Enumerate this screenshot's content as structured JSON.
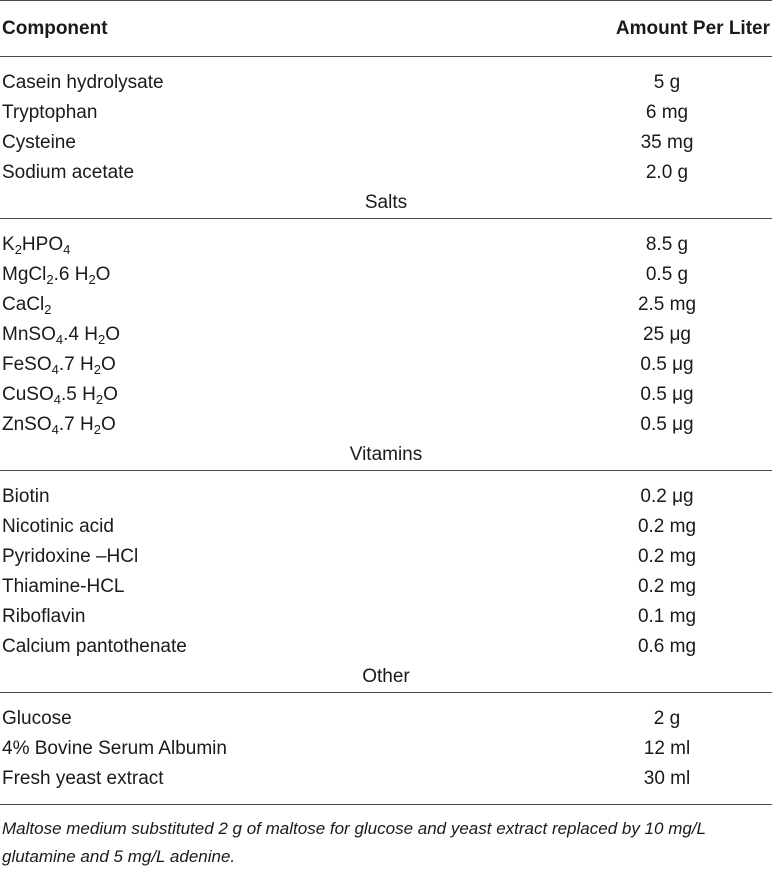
{
  "header": {
    "component": "Component",
    "amount": "Amount Per Liter"
  },
  "sections": [
    {
      "title": "",
      "rows": [
        {
          "name": "Casein hydrolysate",
          "amount": "5 g"
        },
        {
          "name": "Tryptophan",
          "amount": "6 mg"
        },
        {
          "name": "Cysteine",
          "amount": "35 mg"
        },
        {
          "name": "Sodium acetate",
          "amount": "2.0 g"
        }
      ]
    },
    {
      "title": "Salts",
      "rows": [
        {
          "parts": [
            [
              "K",
              ""
            ],
            [
              "2",
              "sub"
            ],
            [
              "HPO",
              ""
            ],
            [
              "4",
              "sub"
            ]
          ],
          "amount": "8.5 g"
        },
        {
          "parts": [
            [
              "MgCl",
              ""
            ],
            [
              "2",
              "sub"
            ],
            [
              ".6 H",
              ""
            ],
            [
              "2",
              "sub"
            ],
            [
              "O",
              ""
            ]
          ],
          "amount": "0.5 g"
        },
        {
          "parts": [
            [
              "CaCl",
              ""
            ],
            [
              "2",
              "sub"
            ]
          ],
          "amount": "2.5 mg"
        },
        {
          "parts": [
            [
              "MnSO",
              ""
            ],
            [
              "4",
              "sub"
            ],
            [
              ".4 H",
              ""
            ],
            [
              "2",
              "sub"
            ],
            [
              "O",
              ""
            ]
          ],
          "amount": "25 μg"
        },
        {
          "parts": [
            [
              "FeSO",
              ""
            ],
            [
              "4",
              "sub"
            ],
            [
              ".7 H",
              ""
            ],
            [
              "2",
              "sub"
            ],
            [
              "O",
              ""
            ]
          ],
          "amount": "0.5 μg"
        },
        {
          "parts": [
            [
              "CuSO",
              ""
            ],
            [
              "4",
              "sub"
            ],
            [
              ".5 H",
              ""
            ],
            [
              "2",
              "sub"
            ],
            [
              "O",
              ""
            ]
          ],
          "amount": "0.5 μg"
        },
        {
          "parts": [
            [
              "ZnSO",
              ""
            ],
            [
              "4",
              "sub"
            ],
            [
              ".7 H",
              ""
            ],
            [
              "2",
              "sub"
            ],
            [
              "O",
              ""
            ]
          ],
          "amount": "0.5 μg"
        }
      ]
    },
    {
      "title": "Vitamins",
      "rows": [
        {
          "name": "Biotin",
          "amount": "0.2 μg"
        },
        {
          "name": "Nicotinic acid",
          "amount": "0.2 mg"
        },
        {
          "name": "Pyridoxine –HCl",
          "amount": "0.2 mg"
        },
        {
          "name": "Thiamine-HCL",
          "amount": "0.2 mg"
        },
        {
          "name": "Riboflavin",
          "amount": "0.1 mg"
        },
        {
          "name": "Calcium pantothenate",
          "amount": "0.6 mg"
        }
      ]
    },
    {
      "title": "Other",
      "rows": [
        {
          "name": "Glucose",
          "amount": "2 g"
        },
        {
          "name": "4% Bovine Serum Albumin",
          "amount": "12 ml"
        },
        {
          "name": "Fresh yeast extract",
          "amount": "30 ml"
        }
      ]
    }
  ],
  "footnote": "Maltose medium substituted 2 g of maltose for glucose and yeast extract replaced by 10 mg/L glutamine and 5 mg/L adenine."
}
